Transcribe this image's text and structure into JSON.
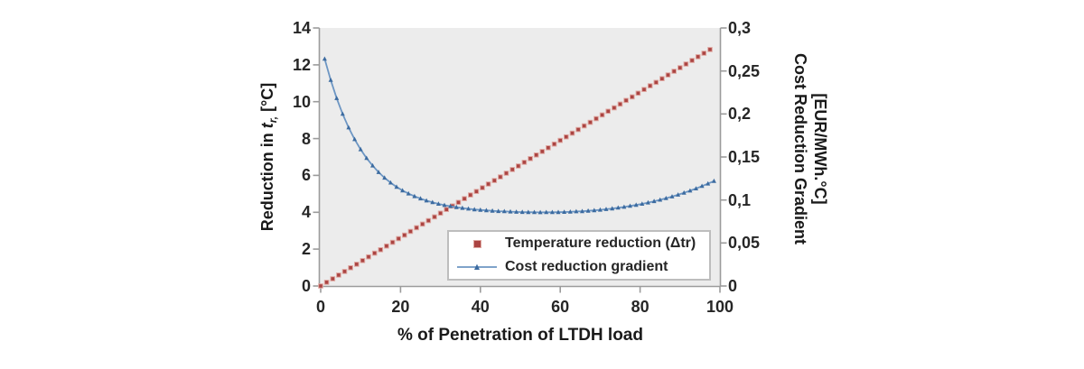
{
  "labels": {
    "x_title": "% of Penetration of LTDH load",
    "y_left_title_prefix": "Reduction in ",
    "y_left_title_var": "t",
    "y_left_title_sub": "r,",
    "y_left_title_suffix": " [°C]",
    "y_right_title_line1": "Cost Reduction Gradient",
    "y_right_title_line2": "[EUR/MWh.°C]"
  },
  "legend": {
    "items": [
      {
        "label": "Temperature reduction (Δtr)",
        "marker": "red-square"
      },
      {
        "label": "Cost reduction gradient",
        "marker": "blue-line-triangle"
      }
    ]
  },
  "colors": {
    "plot_bg": "#ececec",
    "axis": "#9b9b9b",
    "tick_text": "#262626",
    "temperature_marker": "#ab4442",
    "temperature_marker_edge": "#dfa8a2",
    "cost_line": "#6d96c3",
    "cost_marker": "#3c6ba0",
    "legend_border": "#bdbdbd"
  },
  "chart_data": {
    "type": "line",
    "title": "",
    "xlabel": "% of Penetration of LTDH load",
    "xlim": [
      0,
      100
    ],
    "x_ticks": [
      0,
      20,
      40,
      60,
      80,
      100
    ],
    "grid": false,
    "legend_position": "inside-bottom-right",
    "y_left": {
      "label": "Reduction in tr, [°C]",
      "lim": [
        0,
        14
      ],
      "ticks": [
        0,
        2,
        4,
        6,
        8,
        10,
        12,
        14
      ]
    },
    "y_right": {
      "label": "Cost Reduction Gradient [EUR/MWh.°C]",
      "lim": [
        0,
        0.3
      ],
      "tick_values": [
        0,
        0.05,
        0.1,
        0.15,
        0.2,
        0.25,
        0.3
      ],
      "tick_labels": [
        "0",
        "0,05",
        "0,1",
        "0,15",
        "0,2",
        "0,25",
        "0,3"
      ]
    },
    "series": [
      {
        "name": "Temperature reduction (Δtr)",
        "axis": "left",
        "marker": "square",
        "line": false,
        "x": [
          0,
          1.5,
          3,
          4.5,
          6,
          7.5,
          9,
          10.5,
          12,
          13.5,
          15,
          16.5,
          18,
          19.5,
          21,
          22.5,
          24,
          25.5,
          27,
          28.5,
          30,
          31.5,
          33,
          34.5,
          36,
          37.5,
          39,
          40.5,
          42,
          43.5,
          45,
          46.5,
          48,
          49.5,
          51,
          52.5,
          54,
          55.5,
          57,
          58.5,
          60,
          61.5,
          63,
          64.5,
          66,
          67.5,
          69,
          70.5,
          72,
          73.5,
          75,
          76.5,
          78,
          79.5,
          81,
          82.5,
          84,
          85.5,
          87,
          88.5,
          90,
          91.5,
          93,
          94.5,
          96,
          97.5
        ],
        "y": [
          0,
          0.2,
          0.39,
          0.59,
          0.79,
          0.99,
          1.18,
          1.38,
          1.58,
          1.78,
          1.97,
          2.17,
          2.37,
          2.57,
          2.76,
          2.96,
          3.16,
          3.36,
          3.55,
          3.75,
          3.95,
          4.15,
          4.34,
          4.54,
          4.74,
          4.94,
          5.13,
          5.33,
          5.53,
          5.72,
          5.92,
          6.12,
          6.32,
          6.51,
          6.71,
          6.91,
          7.11,
          7.3,
          7.5,
          7.7,
          7.9,
          8.09,
          8.29,
          8.49,
          8.69,
          8.88,
          9.08,
          9.28,
          9.48,
          9.67,
          9.87,
          10.07,
          10.26,
          10.46,
          10.66,
          10.86,
          11.05,
          11.25,
          11.45,
          11.65,
          11.84,
          12.04,
          12.24,
          12.44,
          12.63,
          12.83
        ]
      },
      {
        "name": "Cost reduction gradient",
        "axis": "right",
        "marker": "triangle",
        "line": true,
        "x": [
          1,
          2.5,
          4,
          5.5,
          7,
          8.5,
          10,
          11.5,
          13,
          14.5,
          16,
          17.5,
          19,
          20.5,
          22,
          23.5,
          25,
          26.5,
          28,
          29.5,
          31,
          32.5,
          34,
          35.5,
          37,
          38.5,
          40,
          41.5,
          43,
          44.5,
          46,
          47.5,
          49,
          50.5,
          52,
          53.5,
          55,
          56.5,
          58,
          59.5,
          61,
          62.5,
          64,
          65.5,
          67,
          68.5,
          70,
          71.5,
          73,
          74.5,
          76,
          77.5,
          79,
          80.5,
          82,
          83.5,
          85,
          86.5,
          88,
          89.5,
          91,
          92.5,
          94,
          95.5,
          97,
          98.5
        ],
        "y": [
          0.264,
          0.2395,
          0.2183,
          0.2,
          0.1842,
          0.1706,
          0.1588,
          0.1486,
          0.1399,
          0.1323,
          0.1258,
          0.1201,
          0.1152,
          0.111,
          0.1074,
          0.1043,
          0.1016,
          0.0992,
          0.0972,
          0.0955,
          0.094,
          0.0927,
          0.0916,
          0.0906,
          0.0898,
          0.089,
          0.0884,
          0.0879,
          0.0874,
          0.087,
          0.0867,
          0.0864,
          0.0861,
          0.0859,
          0.0858,
          0.0857,
          0.0856,
          0.0857,
          0.0857,
          0.0858,
          0.086,
          0.0862,
          0.0866,
          0.0869,
          0.0874,
          0.0879,
          0.0885,
          0.0893,
          0.09,
          0.0909,
          0.0919,
          0.093,
          0.0942,
          0.0955,
          0.0969,
          0.0985,
          0.1002,
          0.102,
          0.104,
          0.1061,
          0.1084,
          0.1108,
          0.1133,
          0.1161,
          0.119,
          0.122
        ]
      }
    ]
  }
}
